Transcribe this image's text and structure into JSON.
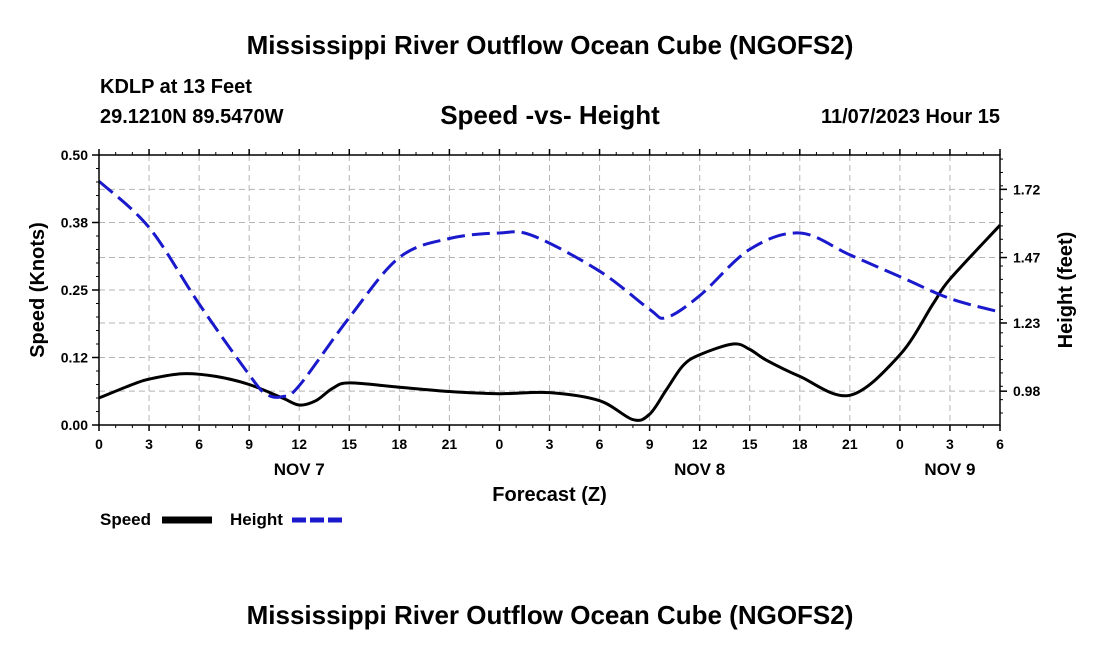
{
  "page_title": "Mississippi River Outflow Ocean Cube (NGOFS2)",
  "footer_title": "Mississippi River Outflow Ocean Cube (NGOFS2)",
  "station": "KDLP at 13 Feet",
  "coordinates": "29.1210N  89.5470W",
  "datetime": "11/07/2023 Hour 15",
  "colors": {
    "speed": "#000000",
    "height": "#1a1acc",
    "grid": "#b4b4b4"
  },
  "chart_data": {
    "type": "line",
    "title": "Speed -vs- Height",
    "xlabel": "Forecast (Z)",
    "ylabel_left": "Speed (Knots)",
    "ylabel_right": "Height (feet)",
    "x_range_hours": [
      0,
      54
    ],
    "x_tick_labels": [
      "0",
      "3",
      "6",
      "9",
      "12",
      "15",
      "18",
      "21",
      "0",
      "3",
      "6",
      "9",
      "12",
      "15",
      "18",
      "21",
      "0",
      "3",
      "6"
    ],
    "date_labels": [
      {
        "label": "NOV 7",
        "hour": 12
      },
      {
        "label": "NOV 8",
        "hour": 36
      },
      {
        "label": "NOV 9",
        "hour": 51
      }
    ],
    "ylim_left": [
      0,
      0.5
    ],
    "yticks_left": [
      "0.00",
      "0.12",
      "0.25",
      "0.38",
      "0.50"
    ],
    "ylim_right": [
      0.856,
      1.846
    ],
    "yticks_right": [
      {
        "label": "0.98",
        "value": 0.98
      },
      {
        "label": "1.23",
        "value": 1.23
      },
      {
        "label": "1.47",
        "value": 1.47
      },
      {
        "label": "1.72",
        "value": 1.72
      }
    ],
    "grid": true,
    "legend_position": "bottom-left",
    "series": [
      {
        "name": "Speed",
        "axis": "left",
        "style": "solid",
        "x": [
          0,
          2,
          3,
          5,
          7,
          9,
          11,
          12,
          13,
          14,
          15,
          18,
          21,
          24,
          27,
          30,
          32,
          33,
          34,
          35,
          36,
          38,
          39,
          40,
          42,
          45,
          48,
          50,
          51,
          54
        ],
        "y": [
          0.05,
          0.075,
          0.085,
          0.095,
          0.09,
          0.075,
          0.05,
          0.037,
          0.045,
          0.068,
          0.078,
          0.07,
          0.062,
          0.058,
          0.06,
          0.045,
          0.01,
          0.02,
          0.065,
          0.11,
          0.13,
          0.15,
          0.14,
          0.12,
          0.09,
          0.055,
          0.13,
          0.225,
          0.27,
          0.37
        ]
      },
      {
        "name": "Height",
        "axis": "right",
        "style": "dashed",
        "x": [
          0,
          3,
          6,
          9,
          10,
          11,
          12,
          15,
          18,
          21,
          24,
          26,
          30,
          33,
          34,
          36,
          39,
          42,
          45,
          48,
          51,
          54
        ],
        "y": [
          1.75,
          1.58,
          1.3,
          1.04,
          0.97,
          0.96,
          1.0,
          1.25,
          1.47,
          1.54,
          1.56,
          1.55,
          1.42,
          1.28,
          1.25,
          1.33,
          1.5,
          1.56,
          1.48,
          1.4,
          1.32,
          1.27
        ]
      }
    ]
  },
  "legend": {
    "speed_label": "Speed",
    "height_label": "Height"
  }
}
